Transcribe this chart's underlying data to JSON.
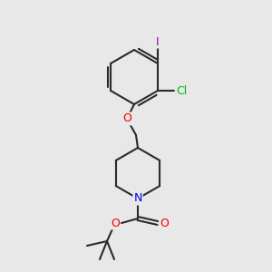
{
  "bg_color": "#e8e8e8",
  "bond_color": "#2a2a2a",
  "atom_colors": {
    "I": "#9900bb",
    "Cl": "#00bb00",
    "O": "#ee0000",
    "N": "#0000ee",
    "C": "#2a2a2a"
  },
  "figsize": [
    3.0,
    3.0
  ],
  "dpi": 100
}
